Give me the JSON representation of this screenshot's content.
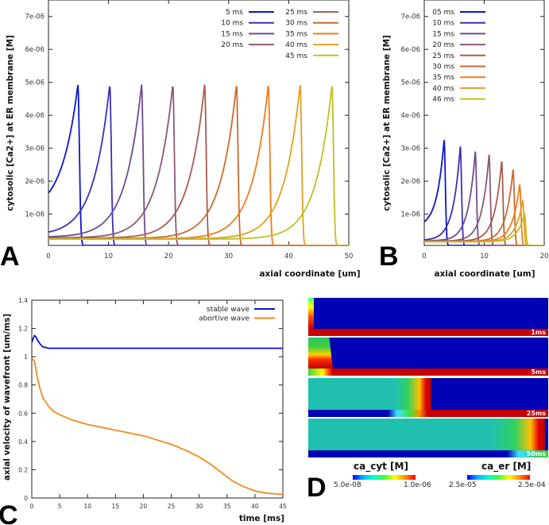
{
  "chart_data": [
    {
      "panel": "A",
      "type": "line",
      "panel_label": "A",
      "xlabel": "axial coordinate [um]",
      "ylabel": "cytosolic [Ca2+] at ER membrane [M]",
      "xlim": [
        0,
        50
      ],
      "ylim": [
        5e-08,
        7.5e-06
      ],
      "xticks": [
        "0",
        "10",
        "20",
        "30",
        "40",
        "50"
      ],
      "xtick_values": [
        0,
        10,
        20,
        30,
        40,
        50
      ],
      "yticks": [
        "1e-06",
        "2e-06",
        "3e-06",
        "4e-06",
        "5e-06",
        "6e-06",
        "7e-06"
      ],
      "ytick_values": [
        1e-06,
        2e-06,
        3e-06,
        4e-06,
        5e-06,
        6e-06,
        7e-06
      ],
      "legend_placement": "top-right",
      "floor": 5e-08,
      "rise_length": 2.7,
      "fall_length": 0.35,
      "series": [
        {
          "name": "5 ms",
          "color": "#0a14d2",
          "peak_x": 4.9,
          "peak": 4.93e-06,
          "baseline": 1e-06
        },
        {
          "name": "10 ms",
          "color": "#3b2fb4",
          "peak_x": 10.2,
          "peak": 4.93e-06,
          "baseline": 3.5e-07
        },
        {
          "name": "15 ms",
          "color": "#6f4b93",
          "peak_x": 15.5,
          "peak": 4.93e-06,
          "baseline": 3e-07
        },
        {
          "name": "20 ms",
          "color": "#8c5876",
          "peak_x": 20.7,
          "peak": 4.93e-06,
          "baseline": 2.8e-07
        },
        {
          "name": "25 ms",
          "color": "#a85c4c",
          "peak_x": 26.0,
          "peak": 4.93e-06,
          "baseline": 2.7e-07
        },
        {
          "name": "30 ms",
          "color": "#cc6a30",
          "peak_x": 31.3,
          "peak": 4.93e-06,
          "baseline": 2.6e-07
        },
        {
          "name": "35 ms",
          "color": "#f27c18",
          "peak_x": 36.6,
          "peak": 4.93e-06,
          "baseline": 2.5e-07
        },
        {
          "name": "40 ms",
          "color": "#e1a020",
          "peak_x": 41.9,
          "peak": 4.93e-06,
          "baseline": 2.5e-07
        },
        {
          "name": "45 ms",
          "color": "#bfc021",
          "peak_x": 47.2,
          "peak": 4.93e-06,
          "baseline": 2.4e-07
        }
      ]
    },
    {
      "panel": "B",
      "type": "line",
      "panel_label": "B",
      "xlabel": "axial coordinate [um]",
      "ylabel": "cytosolic [Ca2+] at ER membrane [M]",
      "xlim": [
        0,
        20
      ],
      "ylim": [
        5e-08,
        7.5e-06
      ],
      "xticks": [
        "0",
        "10",
        "20"
      ],
      "xtick_values": [
        0,
        10,
        20
      ],
      "yticks": [
        "1e-06",
        "2e-06",
        "3e-06",
        "4e-06",
        "5e-06",
        "6e-06",
        "7e-06"
      ],
      "ytick_values": [
        1e-06,
        2e-06,
        3e-06,
        4e-06,
        5e-06,
        6e-06,
        7e-06
      ],
      "legend_placement": "top-left",
      "floor": 5e-08,
      "rise_length": 1.2,
      "fall_length": 0.3,
      "series": [
        {
          "name": "05 ms",
          "color": "#0a14d2",
          "peak_x": 3.3,
          "peak": 3.25e-06,
          "baseline": 6e-07
        },
        {
          "name": "10 ms",
          "color": "#3b2fb4",
          "peak_x": 6.0,
          "peak": 3.05e-06,
          "baseline": 2e-07
        },
        {
          "name": "15 ms",
          "color": "#6f4b93",
          "peak_x": 8.5,
          "peak": 2.9e-06,
          "baseline": 1.9e-07
        },
        {
          "name": "20 ms",
          "color": "#8c5876",
          "peak_x": 10.8,
          "peak": 2.8e-06,
          "baseline": 1.8e-07
        },
        {
          "name": "25 ms",
          "color": "#a85c4c",
          "peak_x": 12.9,
          "peak": 2.6e-06,
          "baseline": 1.8e-07
        },
        {
          "name": "30 ms",
          "color": "#cc6a30",
          "peak_x": 14.8,
          "peak": 2.35e-06,
          "baseline": 1.7e-07
        },
        {
          "name": "35 ms",
          "color": "#f27c18",
          "peak_x": 15.9,
          "peak": 1.9e-06,
          "baseline": 1.7e-07
        },
        {
          "name": "40 ms",
          "color": "#e1a020",
          "peak_x": 16.4,
          "peak": 1.4e-06,
          "baseline": 1.6e-07
        },
        {
          "name": "46 ms",
          "color": "#bfc021",
          "peak_x": 16.7,
          "peak": 1e-06,
          "baseline": 1.6e-07
        }
      ]
    },
    {
      "panel": "C",
      "type": "line",
      "panel_label": "C",
      "xlabel": "time [ms]",
      "ylabel": "axial velocity of wavefront [um/ms]",
      "xlim": [
        0,
        45
      ],
      "ylim": [
        0,
        1.4
      ],
      "xticks": [
        "0",
        "5",
        "10",
        "15",
        "20",
        "25",
        "30",
        "35",
        "40",
        "45"
      ],
      "xtick_values": [
        0,
        5,
        10,
        15,
        20,
        25,
        30,
        35,
        40,
        45
      ],
      "yticks": [
        "0",
        "0.2",
        "0.4",
        "0.6",
        "0.8",
        "1",
        "1.2",
        "1.4"
      ],
      "ytick_values": [
        0,
        0.2,
        0.4,
        0.6,
        0.8,
        1,
        1.2,
        1.4
      ],
      "legend_placement": "top-right",
      "series": [
        {
          "name": "stable wave",
          "color": "#0a14d2",
          "x": [
            0,
            0.25,
            0.5,
            0.75,
            1,
            1.5,
            2,
            2.5,
            3,
            4,
            10,
            20,
            30,
            45
          ],
          "y": [
            1.1,
            1.13,
            1.15,
            1.14,
            1.12,
            1.09,
            1.07,
            1.065,
            1.06,
            1.06,
            1.06,
            1.06,
            1.06,
            1.06
          ]
        },
        {
          "name": "abortive wave",
          "color": "#f28a22",
          "x": [
            0,
            0.5,
            1,
            1.5,
            2,
            3,
            4,
            5,
            7,
            10,
            15,
            20,
            25,
            28,
            30,
            32,
            34,
            36,
            38,
            40,
            42,
            45
          ],
          "y": [
            0.99,
            0.97,
            0.85,
            0.77,
            0.71,
            0.65,
            0.61,
            0.59,
            0.555,
            0.52,
            0.48,
            0.44,
            0.38,
            0.33,
            0.29,
            0.24,
            0.18,
            0.12,
            0.08,
            0.05,
            0.035,
            0.025
          ]
        }
      ]
    }
  ],
  "panel_d": {
    "panel_label": "D",
    "snapshots": [
      "1ms",
      "5ms",
      "25ms",
      "50ms"
    ],
    "colorbars": [
      {
        "title": "ca_cyt [M]",
        "min": "5.0e-08",
        "max": "1.0e-06"
      },
      {
        "title": "ca_er [M]",
        "min": "2.5e-05",
        "max": "2.5e-04"
      }
    ]
  }
}
